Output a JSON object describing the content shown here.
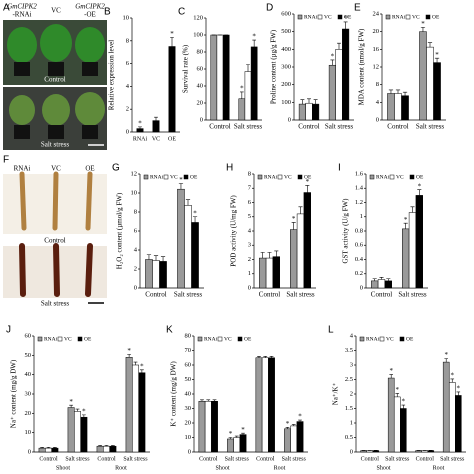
{
  "images": {
    "A": {
      "label": "A",
      "genotypes": [
        [
          "GmCIPK2",
          "-RNAi"
        ],
        [
          "VC"
        ],
        [
          "GmCIPK2",
          "-OE"
        ]
      ],
      "conditions": [
        "Control",
        "Salt stress"
      ]
    },
    "F": {
      "label": "F",
      "genotypes": [
        "RNAi",
        "VC",
        "OE"
      ],
      "conditions": [
        "Control",
        "Salt stress"
      ]
    }
  },
  "chart_data": [
    {
      "type": "bar",
      "label": "B",
      "ylabel": "Relative expression level",
      "categories": [
        "RNAi",
        "VC",
        "OE"
      ],
      "values": [
        0.3,
        1,
        7.5
      ],
      "errors": [
        0.15,
        0.3,
        0.8
      ],
      "stars": [
        "*",
        null,
        "*"
      ],
      "color": "#000000",
      "ylim": [
        0,
        10
      ],
      "yticks": [
        0,
        2,
        4,
        6,
        8,
        10
      ]
    },
    {
      "type": "bar",
      "label": "C",
      "ylabel": "Survival rate (%)",
      "categories": [
        "Control",
        "Salt stress"
      ],
      "series": [
        {
          "name": "RNAi",
          "color": "#9a9a9a",
          "values": [
            100,
            25
          ],
          "errors": [
            0,
            8
          ],
          "stars": [
            null,
            "*"
          ]
        },
        {
          "name": "VC",
          "color": "#ffffff",
          "values": [
            100,
            57
          ],
          "errors": [
            0,
            8
          ],
          "stars": [
            null,
            null
          ]
        },
        {
          "name": "OE",
          "color": "#000000",
          "values": [
            100,
            86
          ],
          "errors": [
            0,
            8
          ],
          "stars": [
            null,
            "*"
          ]
        }
      ],
      "ylim": [
        0,
        120
      ],
      "yticks": [
        0,
        20,
        40,
        60,
        80,
        100,
        120
      ]
    },
    {
      "type": "bar",
      "label": "D",
      "ylabel": "Proline content (µg/g FW)",
      "categories": [
        "Control",
        "Salt stress"
      ],
      "legend": "top-left",
      "series": [
        {
          "name": "RNAi",
          "color": "#9a9a9a",
          "values": [
            90,
            310
          ],
          "errors": [
            25,
            30
          ],
          "stars": [
            null,
            "*"
          ]
        },
        {
          "name": "VC",
          "color": "#ffffff",
          "values": [
            95,
            400
          ],
          "errors": [
            25,
            35
          ],
          "stars": [
            null,
            null
          ]
        },
        {
          "name": "OE",
          "color": "#000000",
          "values": [
            90,
            515
          ],
          "errors": [
            25,
            40
          ],
          "stars": [
            null,
            "*"
          ]
        }
      ],
      "ylim": [
        0,
        600
      ],
      "yticks": [
        0,
        100,
        200,
        300,
        400,
        500,
        600
      ]
    },
    {
      "type": "bar",
      "label": "E",
      "ylabel": "MDA content (nmol/g FW)",
      "categories": [
        "Control",
        "Salt stress"
      ],
      "legend": "top-left",
      "series": [
        {
          "name": "RNAi",
          "color": "#9a9a9a",
          "values": [
            6,
            20
          ],
          "errors": [
            0.8,
            1
          ],
          "stars": [
            null,
            "*"
          ]
        },
        {
          "name": "VC",
          "color": "#ffffff",
          "values": [
            6,
            16.5
          ],
          "errors": [
            0.8,
            1
          ],
          "stars": [
            null,
            null
          ]
        },
        {
          "name": "OE",
          "color": "#000000",
          "values": [
            5.5,
            13
          ],
          "errors": [
            0.8,
            1
          ],
          "stars": [
            null,
            "*"
          ]
        }
      ],
      "ylim": [
        0,
        24
      ],
      "yticks": [
        0,
        4,
        8,
        12,
        16,
        20,
        24
      ]
    },
    {
      "type": "bar",
      "label": "G",
      "ylabel": "H₂O₂ content (µmol/g FW)",
      "categories": [
        "Control",
        "Salt stress"
      ],
      "legend": "top-left",
      "series": [
        {
          "name": "RNAi",
          "color": "#9a9a9a",
          "values": [
            3,
            10.4
          ],
          "errors": [
            0.5,
            0.6
          ],
          "stars": [
            null,
            "*"
          ]
        },
        {
          "name": "VC",
          "color": "#ffffff",
          "values": [
            2.9,
            8.7
          ],
          "errors": [
            0.5,
            0.6
          ],
          "stars": [
            null,
            null
          ]
        },
        {
          "name": "OE",
          "color": "#000000",
          "values": [
            2.8,
            6.9
          ],
          "errors": [
            0.5,
            0.6
          ],
          "stars": [
            null,
            "*"
          ]
        }
      ],
      "ylim": [
        0,
        12
      ],
      "yticks": [
        0,
        2,
        4,
        6,
        8,
        10,
        12
      ]
    },
    {
      "type": "bar",
      "label": "H",
      "ylabel": "POD activity (U/mg FW)",
      "categories": [
        "Control",
        "Salt stress"
      ],
      "legend": "top-left",
      "series": [
        {
          "name": "RNAi",
          "color": "#9a9a9a",
          "values": [
            2.1,
            4.1
          ],
          "errors": [
            0.4,
            0.5
          ],
          "stars": [
            null,
            "*"
          ]
        },
        {
          "name": "VC",
          "color": "#ffffff",
          "values": [
            2.1,
            5.2
          ],
          "errors": [
            0.4,
            0.5
          ],
          "stars": [
            null,
            null
          ]
        },
        {
          "name": "OE",
          "color": "#000000",
          "values": [
            2.2,
            6.7
          ],
          "errors": [
            0.4,
            0.5
          ],
          "stars": [
            null,
            "*"
          ]
        }
      ],
      "ylim": [
        0,
        8
      ],
      "yticks": [
        0,
        1,
        2,
        3,
        4,
        5,
        6,
        7,
        8
      ]
    },
    {
      "type": "bar",
      "label": "I",
      "ylabel": "GST activity (U/g FW)",
      "categories": [
        "Control",
        "Salt stress"
      ],
      "legend": "top-left",
      "series": [
        {
          "name": "RNAi",
          "color": "#9a9a9a",
          "values": [
            0.1,
            0.83
          ],
          "errors": [
            0.03,
            0.08
          ],
          "stars": [
            null,
            "*"
          ]
        },
        {
          "name": "VC",
          "color": "#ffffff",
          "values": [
            0.12,
            1.06
          ],
          "errors": [
            0.03,
            0.08
          ],
          "stars": [
            null,
            null
          ]
        },
        {
          "name": "OE",
          "color": "#000000",
          "values": [
            0.1,
            1.3
          ],
          "errors": [
            0.03,
            0.08
          ],
          "stars": [
            null,
            "*"
          ]
        }
      ],
      "ylim": [
        0,
        1.6
      ],
      "yticks": [
        0,
        0.2,
        0.4,
        0.6,
        0.8,
        1,
        1.2,
        1.4,
        1.6
      ]
    },
    {
      "type": "bar",
      "label": "J",
      "ylabel": "Na⁺ content (mg/g DW)",
      "categories": [
        "Control",
        "Salt stress",
        "Control",
        "Salt stress"
      ],
      "groups": [
        "Shoot",
        "Root"
      ],
      "legend": "top-left",
      "series": [
        {
          "name": "RNAi",
          "color": "#9a9a9a",
          "values": [
            2,
            23,
            3,
            49
          ],
          "errors": [
            0.4,
            1.2,
            0.4,
            1.5
          ],
          "stars": [
            null,
            "*",
            null,
            "*"
          ]
        },
        {
          "name": "VC",
          "color": "#ffffff",
          "values": [
            2,
            21,
            3,
            45
          ],
          "errors": [
            0.4,
            1.2,
            0.4,
            1.5
          ],
          "stars": [
            null,
            null,
            null,
            null
          ]
        },
        {
          "name": "OE",
          "color": "#000000",
          "values": [
            2,
            18,
            3,
            41
          ],
          "errors": [
            0.4,
            1.2,
            0.4,
            1.5
          ],
          "stars": [
            null,
            "*",
            null,
            "*"
          ]
        }
      ],
      "ylim": [
        0,
        60
      ],
      "yticks": [
        0,
        10,
        20,
        30,
        40,
        50,
        60
      ]
    },
    {
      "type": "bar",
      "label": "K",
      "ylabel": "K⁺ content (mg/g DW)",
      "categories": [
        "Control",
        "Salt stress",
        "Control",
        "Salt stress"
      ],
      "groups": [
        "Shoot",
        "Root"
      ],
      "legend": "top-left",
      "series": [
        {
          "name": "RNAi",
          "color": "#9a9a9a",
          "values": [
            35,
            9,
            65,
            16
          ],
          "errors": [
            1,
            1,
            1,
            1
          ],
          "stars": [
            null,
            "*",
            null,
            "*"
          ]
        },
        {
          "name": "VC",
          "color": "#ffffff",
          "values": [
            35,
            10,
            65,
            18
          ],
          "errors": [
            1,
            1,
            1,
            1
          ],
          "stars": [
            null,
            null,
            null,
            null
          ]
        },
        {
          "name": "OE",
          "color": "#000000",
          "values": [
            35,
            12,
            65,
            21
          ],
          "errors": [
            1,
            1,
            1,
            1
          ],
          "stars": [
            null,
            "*",
            null,
            "*"
          ]
        }
      ],
      "ylim": [
        0,
        80
      ],
      "yticks": [
        0,
        10,
        20,
        30,
        40,
        50,
        60,
        70,
        80
      ]
    },
    {
      "type": "bar",
      "label": "L",
      "ylabel": "Na⁺/K⁺",
      "categories": [
        "Control",
        "Salt stress",
        "Control",
        "Salt stress"
      ],
      "groups": [
        "Shoot",
        "Root"
      ],
      "legend": "top-left",
      "series": [
        {
          "name": "RNAi",
          "color": "#9a9a9a",
          "values": [
            0.05,
            2.55,
            0.05,
            3.1
          ],
          "errors": [
            0.01,
            0.12,
            0.01,
            0.12
          ],
          "stars": [
            null,
            "*",
            null,
            "*"
          ]
        },
        {
          "name": "VC",
          "color": "#ffffff",
          "values": [
            0.05,
            1.9,
            0.05,
            2.4
          ],
          "errors": [
            0.01,
            0.12,
            0.01,
            0.12
          ],
          "stars": [
            null,
            "*",
            null,
            "*"
          ]
        },
        {
          "name": "OE",
          "color": "#000000",
          "values": [
            0.05,
            1.5,
            0.05,
            1.95
          ],
          "errors": [
            0.01,
            0.12,
            0.01,
            0.12
          ],
          "stars": [
            null,
            "*",
            null,
            "*"
          ]
        }
      ],
      "ylim": [
        0,
        4
      ],
      "yticks": [
        0,
        0.5,
        1,
        1.5,
        2,
        2.5,
        3,
        3.5,
        4
      ]
    }
  ]
}
